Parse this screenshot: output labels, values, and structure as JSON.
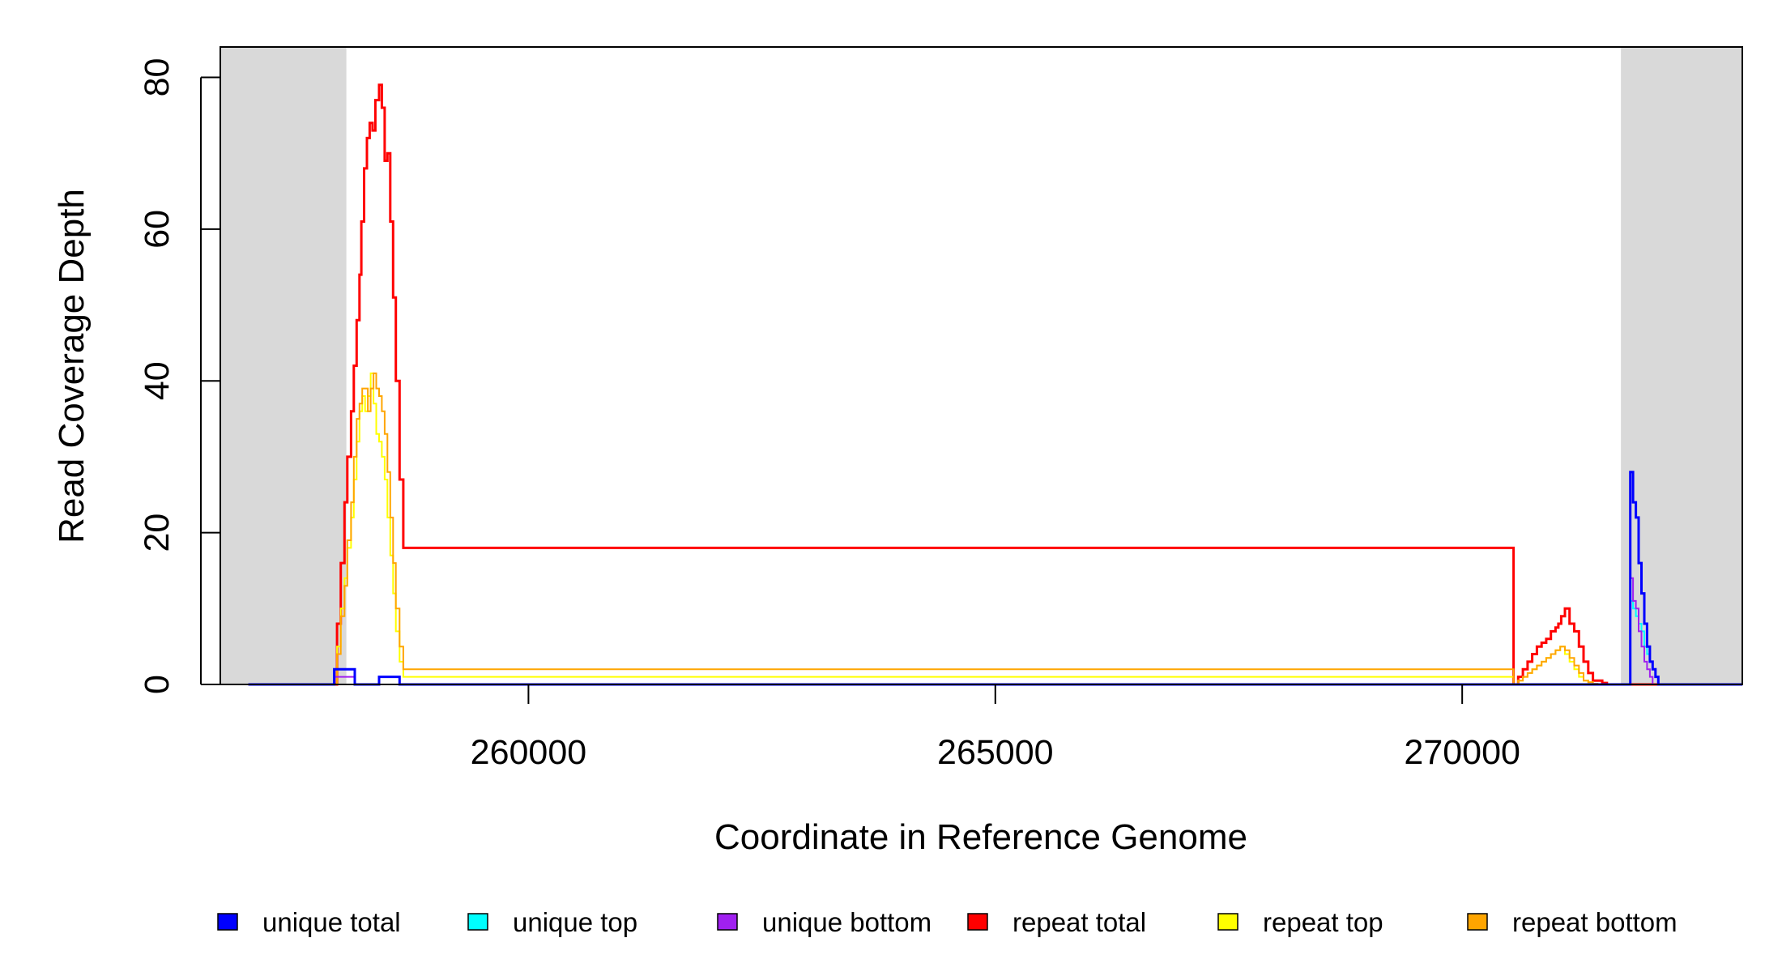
{
  "chart_data": {
    "type": "line",
    "step": true,
    "xlabel": "Coordinate in Reference Genome",
    "ylabel": "Read Coverage Depth",
    "xlim": [
      256700,
      273000
    ],
    "ylim": [
      0,
      84
    ],
    "xticks": [
      260000,
      265000,
      270000
    ],
    "yticks": [
      0,
      20,
      40,
      60,
      80
    ],
    "grid": false,
    "legend_position": "bottom",
    "shaded_regions": [
      {
        "x0": 256700,
        "x1": 258050,
        "color": "#d9d9d9"
      },
      {
        "x0": 271700,
        "x1": 273000,
        "color": "#d9d9d9"
      }
    ],
    "series": [
      {
        "name": "repeat total",
        "color": "#ff0000",
        "width": 3,
        "x": [
          257000,
          257950,
          257990,
          258030,
          258060,
          258100,
          258130,
          258160,
          258190,
          258210,
          258240,
          258270,
          258300,
          258330,
          258360,
          258400,
          258430,
          258460,
          258490,
          258520,
          258550,
          258580,
          258620,
          258660,
          270550,
          270600,
          270650,
          270700,
          270750,
          270800,
          270850,
          270900,
          270950,
          271000,
          271030,
          271060,
          271100,
          271150,
          271200,
          271250,
          271300,
          271350,
          271400,
          271450,
          271500,
          271550,
          272000
        ],
        "y": [
          0,
          8,
          16,
          24,
          30,
          36,
          42,
          48,
          54,
          61,
          68,
          72,
          74,
          73,
          77,
          79,
          76,
          69,
          70,
          61,
          51,
          40,
          27,
          18,
          0,
          1,
          2,
          3,
          4,
          5,
          5.5,
          6,
          7,
          7.5,
          8,
          9,
          10,
          8,
          7,
          5,
          3,
          1.5,
          0.5,
          0.5,
          0.2,
          0,
          0
        ]
      },
      {
        "name": "repeat top",
        "color": "#ffff00",
        "width": 2,
        "x": [
          257000,
          257950,
          257990,
          258030,
          258060,
          258100,
          258130,
          258160,
          258190,
          258220,
          258250,
          258280,
          258310,
          258340,
          258370,
          258400,
          258430,
          258460,
          258490,
          258520,
          258550,
          258580,
          258620,
          258660,
          270550,
          270600,
          270650,
          270700,
          270750,
          270800,
          270850,
          270900,
          270950,
          271000,
          271050,
          271100,
          271150,
          271200,
          271250,
          271300,
          271350,
          271400,
          271450,
          272000
        ],
        "y": [
          0,
          5,
          10,
          14,
          18,
          22,
          27,
          32,
          36,
          38,
          36,
          38,
          41,
          37,
          33,
          32,
          30,
          27,
          22,
          17,
          12,
          7,
          3,
          1,
          0,
          0.5,
          1,
          1.5,
          2,
          2.5,
          3,
          3.5,
          4,
          4.5,
          5,
          4,
          3,
          2,
          1,
          0.5,
          0.3,
          0.1,
          0,
          0
        ]
      },
      {
        "name": "repeat bottom",
        "color": "#ffa500",
        "width": 2,
        "x": [
          257000,
          257950,
          257990,
          258030,
          258060,
          258100,
          258130,
          258160,
          258190,
          258220,
          258250,
          258280,
          258310,
          258340,
          258370,
          258400,
          258430,
          258460,
          258490,
          258520,
          258550,
          258580,
          258620,
          258660,
          270550,
          270600,
          270650,
          270700,
          270750,
          270800,
          270850,
          270900,
          270950,
          271000,
          271050,
          271100,
          271150,
          271200,
          271250,
          271300,
          271350,
          271400,
          271450,
          272000
        ],
        "y": [
          0,
          4,
          9,
          13,
          19,
          24,
          30,
          35,
          37,
          39,
          39,
          36,
          39,
          41,
          39,
          38,
          36,
          33,
          28,
          22,
          16,
          10,
          5,
          2,
          0,
          0.5,
          1,
          1.5,
          2,
          2.5,
          3,
          3.5,
          4,
          4.5,
          5,
          4.5,
          3.5,
          2.5,
          1.5,
          0.5,
          0.3,
          0.1,
          0,
          0
        ]
      },
      {
        "name": "unique top",
        "color": "#00ffff",
        "width": 2,
        "x": [
          257000,
          271800,
          271830,
          271860,
          271890,
          271920,
          271950,
          271980,
          272010,
          272040,
          272070,
          272100,
          273000
        ],
        "y": [
          0,
          11,
          10,
          9,
          8,
          7,
          5,
          4,
          3,
          2,
          1,
          0,
          0
        ]
      },
      {
        "name": "unique bottom",
        "color": "#a020f0",
        "width": 2,
        "x": [
          257000,
          257920,
          258140,
          258660,
          271800,
          271830,
          271860,
          271890,
          271920,
          271950,
          271980,
          272010,
          272040,
          273000
        ],
        "y": [
          0,
          1,
          0,
          0,
          14,
          11,
          10,
          7,
          5,
          3,
          2,
          1,
          0,
          0
        ]
      },
      {
        "name": "unique total",
        "color": "#0000ff",
        "width": 3,
        "x": [
          257000,
          257920,
          258140,
          258400,
          258620,
          271800,
          271830,
          271860,
          271890,
          271920,
          271950,
          271980,
          272010,
          272040,
          272070,
          272100,
          273000
        ],
        "y": [
          0,
          2,
          0,
          1,
          0,
          28,
          24,
          22,
          16,
          12,
          8,
          5,
          3,
          2,
          1,
          0,
          0
        ]
      }
    ],
    "legend": [
      {
        "label": "unique total",
        "color": "#0000ff"
      },
      {
        "label": "unique top",
        "color": "#00ffff"
      },
      {
        "label": "unique bottom",
        "color": "#a020f0"
      },
      {
        "label": "repeat total",
        "color": "#ff0000"
      },
      {
        "label": "repeat top",
        "color": "#ffff00"
      },
      {
        "label": "repeat bottom",
        "color": "#ffa500"
      }
    ]
  }
}
